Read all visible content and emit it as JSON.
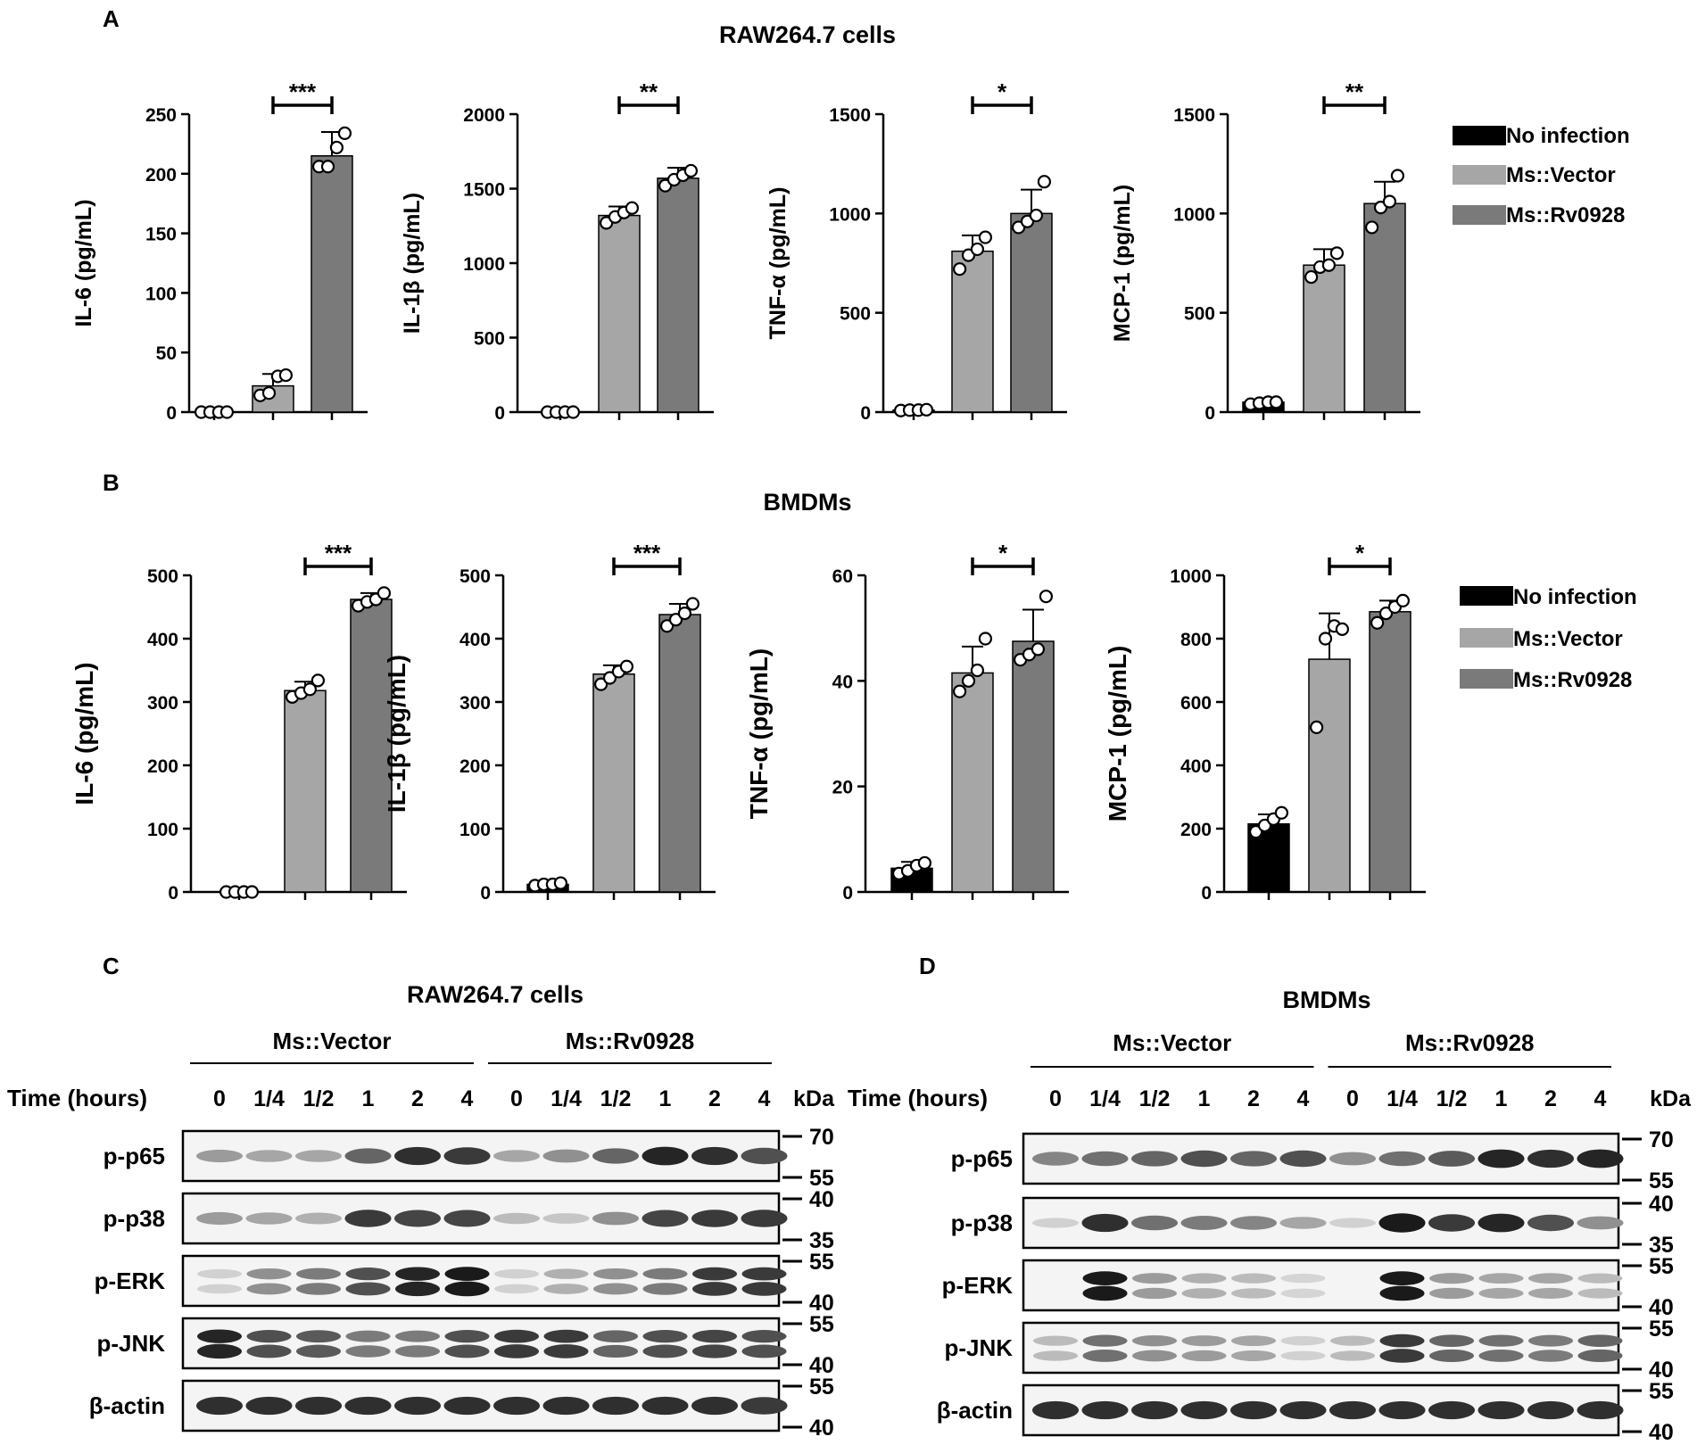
{
  "panels": {
    "A": {
      "letter": "A",
      "title": "RAW264.7 cells"
    },
    "B": {
      "letter": "B",
      "title": "BMDMs"
    },
    "C": {
      "letter": "C",
      "title": "RAW264.7 cells"
    },
    "D": {
      "letter": "D",
      "title": "BMDMs"
    }
  },
  "legend": {
    "items": [
      {
        "label": "No infection",
        "color": "#000000"
      },
      {
        "label": "Ms::Vector",
        "color": "#a6a6a6"
      },
      {
        "label": "Ms::Rv0928",
        "color": "#7a7a7a"
      }
    ]
  },
  "chart_data": [
    {
      "type": "bar",
      "panel": "A",
      "ylabel": "IL-6 (pg/mL)",
      "ylim": [
        0,
        250
      ],
      "yticks": [
        0,
        50,
        100,
        150,
        200,
        250
      ],
      "categories": [
        "No infection",
        "Ms::Vector",
        "Ms::Rv0928"
      ],
      "values": [
        0,
        22,
        215
      ],
      "errors": [
        0,
        10,
        20
      ],
      "points": [
        [
          0,
          0,
          0,
          0
        ],
        [
          14,
          16,
          30,
          31
        ],
        [
          206,
          206,
          222,
          234
        ]
      ],
      "significance": {
        "label": "***",
        "from": 1,
        "to": 2
      }
    },
    {
      "type": "bar",
      "panel": "A",
      "ylabel": "IL-1β (pg/mL)",
      "ylim": [
        0,
        2000
      ],
      "yticks": [
        0,
        500,
        1000,
        1500,
        2000
      ],
      "categories": [
        "No infection",
        "Ms::Vector",
        "Ms::Rv0928"
      ],
      "values": [
        0,
        1320,
        1570
      ],
      "errors": [
        0,
        60,
        70
      ],
      "points": [
        [
          0,
          0,
          0,
          0
        ],
        [
          1270,
          1310,
          1340,
          1370
        ],
        [
          1520,
          1560,
          1590,
          1620
        ]
      ],
      "significance": {
        "label": "**",
        "from": 1,
        "to": 2
      }
    },
    {
      "type": "bar",
      "panel": "A",
      "ylabel": "TNF-α (pg/mL)",
      "ylim": [
        0,
        1500
      ],
      "yticks": [
        0,
        500,
        1000,
        1500
      ],
      "categories": [
        "No infection",
        "Ms::Vector",
        "Ms::Rv0928"
      ],
      "values": [
        10,
        810,
        1000
      ],
      "errors": [
        0,
        80,
        120
      ],
      "points": [
        [
          8,
          10,
          10,
          12
        ],
        [
          720,
          790,
          820,
          880
        ],
        [
          930,
          960,
          990,
          1160
        ]
      ],
      "significance": {
        "label": "*",
        "from": 1,
        "to": 2
      }
    },
    {
      "type": "bar",
      "panel": "A",
      "ylabel": "MCP-1 (pg/mL)",
      "ylim": [
        0,
        1500
      ],
      "yticks": [
        0,
        500,
        1000,
        1500
      ],
      "categories": [
        "No infection",
        "Ms::Vector",
        "Ms::Rv0928"
      ],
      "values": [
        50,
        740,
        1050
      ],
      "errors": [
        10,
        80,
        110
      ],
      "points": [
        [
          40,
          45,
          50,
          50
        ],
        [
          680,
          730,
          740,
          800
        ],
        [
          930,
          1030,
          1060,
          1190
        ]
      ],
      "significance": {
        "label": "**",
        "from": 1,
        "to": 2
      }
    },
    {
      "type": "bar",
      "panel": "B",
      "ylabel": "IL-6 (pg/mL)",
      "ylim": [
        0,
        500
      ],
      "yticks": [
        0,
        100,
        200,
        300,
        400,
        500
      ],
      "categories": [
        "No infection",
        "Ms::Vector",
        "Ms::Rv0928"
      ],
      "values": [
        0,
        318,
        462
      ],
      "errors": [
        0,
        14,
        10
      ],
      "points": [
        [
          0,
          0,
          0,
          0
        ],
        [
          308,
          314,
          320,
          334
        ],
        [
          452,
          458,
          462,
          472
        ]
      ],
      "significance": {
        "label": "***",
        "from": 1,
        "to": 2
      }
    },
    {
      "type": "bar",
      "panel": "B",
      "ylabel": "IL-1β (pg/mL)",
      "ylim": [
        0,
        500
      ],
      "yticks": [
        0,
        100,
        200,
        300,
        400,
        500
      ],
      "categories": [
        "No infection",
        "Ms::Vector",
        "Ms::Rv0928"
      ],
      "values": [
        12,
        344,
        438
      ],
      "errors": [
        0,
        14,
        17
      ],
      "points": [
        [
          10,
          12,
          12,
          14
        ],
        [
          328,
          338,
          348,
          356
        ],
        [
          420,
          430,
          440,
          455
        ]
      ],
      "significance": {
        "label": "***",
        "from": 1,
        "to": 2
      }
    },
    {
      "type": "bar",
      "panel": "B",
      "ylabel": "TNF-α (pg/mL)",
      "ylim": [
        0,
        60
      ],
      "yticks": [
        0,
        20,
        40,
        60
      ],
      "categories": [
        "No infection",
        "Ms::Vector",
        "Ms::Rv0928"
      ],
      "values": [
        4.5,
        41.5,
        47.5
      ],
      "errors": [
        1.2,
        5,
        6
      ],
      "points": [
        [
          3.5,
          4,
          5,
          5.5
        ],
        [
          38,
          40,
          42,
          48
        ],
        [
          44,
          45,
          46,
          56
        ]
      ],
      "significance": {
        "label": "*",
        "from": 1,
        "to": 2
      }
    },
    {
      "type": "bar",
      "panel": "B",
      "ylabel": "MCP-1 (pg/mL)",
      "ylim": [
        0,
        1000
      ],
      "yticks": [
        0,
        200,
        400,
        600,
        800,
        1000
      ],
      "categories": [
        "No infection",
        "Ms::Vector",
        "Ms::Rv0928"
      ],
      "values": [
        215,
        735,
        885
      ],
      "errors": [
        30,
        145,
        35
      ],
      "points": [
        [
          190,
          210,
          230,
          250
        ],
        [
          520,
          800,
          840,
          830
        ],
        [
          850,
          880,
          900,
          920
        ]
      ],
      "significance": {
        "label": "*",
        "from": 1,
        "to": 2
      }
    }
  ],
  "blots": {
    "C": {
      "groups": [
        "Ms::Vector",
        "Ms::Rv0928"
      ],
      "time_label": "Time (hours)",
      "times": [
        "0",
        "1/4",
        "1/2",
        "1",
        "2",
        "4",
        "0",
        "1/4",
        "1/2",
        "1",
        "2",
        "4"
      ],
      "kda_label": "kDa",
      "rows": [
        {
          "label": "p-p65",
          "markers": [
            "70",
            "55"
          ],
          "intensity": [
            0.35,
            0.3,
            0.3,
            0.6,
            0.85,
            0.8,
            0.3,
            0.4,
            0.6,
            0.9,
            0.85,
            0.7
          ],
          "bands": 1
        },
        {
          "label": "p-p38",
          "markers": [
            "40",
            "35"
          ],
          "intensity": [
            0.35,
            0.3,
            0.25,
            0.8,
            0.75,
            0.75,
            0.2,
            0.15,
            0.4,
            0.75,
            0.8,
            0.8
          ],
          "bands": 1
        },
        {
          "label": "p-ERK",
          "markers": [
            "55",
            "40"
          ],
          "intensity": [
            0.1,
            0.4,
            0.5,
            0.7,
            0.9,
            0.95,
            0.1,
            0.25,
            0.4,
            0.5,
            0.8,
            0.8
          ],
          "bands": 2
        },
        {
          "label": "p-JNK",
          "markers": [
            "55",
            "40"
          ],
          "intensity": [
            0.9,
            0.7,
            0.65,
            0.5,
            0.5,
            0.7,
            0.8,
            0.8,
            0.6,
            0.7,
            0.75,
            0.7
          ],
          "bands": 2
        },
        {
          "label": "β-actin",
          "markers": [
            "55",
            "40"
          ],
          "intensity": [
            0.85,
            0.85,
            0.85,
            0.85,
            0.85,
            0.85,
            0.85,
            0.85,
            0.85,
            0.85,
            0.85,
            0.8
          ],
          "bands": 1
        }
      ]
    },
    "D": {
      "groups": [
        "Ms::Vector",
        "Ms::Rv0928"
      ],
      "time_label": "Time (hours)",
      "times": [
        "0",
        "1/4",
        "1/2",
        "1",
        "2",
        "4",
        "0",
        "1/4",
        "1/2",
        "1",
        "2",
        "4"
      ],
      "kda_label": "kDa",
      "rows": [
        {
          "label": "p-p65",
          "markers": [
            "70",
            "55"
          ],
          "intensity": [
            0.45,
            0.55,
            0.6,
            0.7,
            0.6,
            0.7,
            0.4,
            0.55,
            0.65,
            0.9,
            0.85,
            0.9
          ],
          "bands": 1
        },
        {
          "label": "p-p38",
          "markers": [
            "40",
            "35"
          ],
          "intensity": [
            0.1,
            0.85,
            0.55,
            0.5,
            0.45,
            0.3,
            0.1,
            0.95,
            0.8,
            0.9,
            0.7,
            0.4
          ],
          "bands": 1
        },
        {
          "label": "p-ERK",
          "markers": [
            "55",
            "40"
          ],
          "intensity": [
            0.0,
            0.95,
            0.35,
            0.25,
            0.2,
            0.08,
            0.0,
            0.95,
            0.35,
            0.3,
            0.3,
            0.2
          ],
          "bands": 2
        },
        {
          "label": "p-JNK",
          "markers": [
            "55",
            "40"
          ],
          "intensity": [
            0.2,
            0.55,
            0.4,
            0.35,
            0.3,
            0.1,
            0.2,
            0.8,
            0.6,
            0.55,
            0.5,
            0.6
          ],
          "bands": 2
        },
        {
          "label": "β-actin",
          "markers": [
            "55",
            "40"
          ],
          "intensity": [
            0.85,
            0.85,
            0.85,
            0.85,
            0.85,
            0.85,
            0.85,
            0.85,
            0.85,
            0.85,
            0.85,
            0.85
          ],
          "bands": 1
        }
      ]
    }
  }
}
